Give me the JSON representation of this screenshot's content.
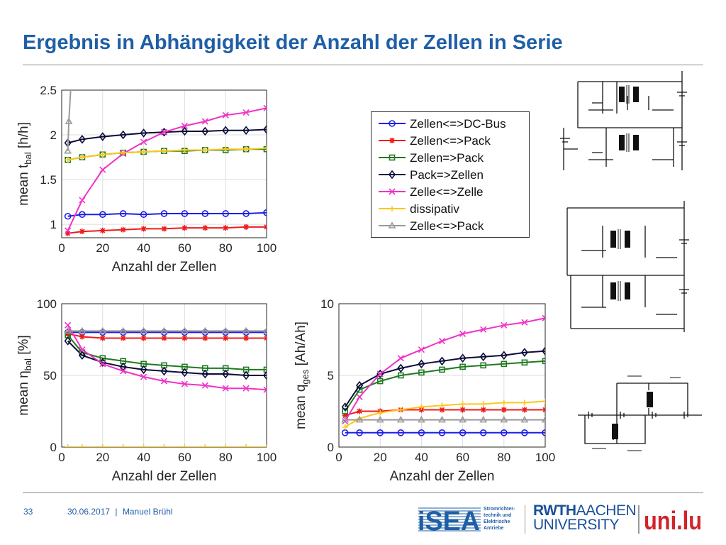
{
  "slide": {
    "title": "Ergebnis in Abhängigkeit der Anzahl der Zellen in Serie",
    "page_number": "33",
    "date": "30.06.2017",
    "separator": "|",
    "author": "Manuel Brühl"
  },
  "logos": {
    "isea": {
      "text": "iSEA",
      "subtitle_lines": [
        "Stromrichter-",
        "technik und",
        "Elektrische",
        "Antriebe"
      ]
    },
    "rwth": {
      "line1_bold": "RWTH",
      "line1_rest": "AACHEN",
      "line2": "UNIVERSITY"
    },
    "unilu": {
      "text": "uni.lu"
    }
  },
  "colors": {
    "title": "#1f5fa6",
    "zellen_dcbus": "#1f1fe8",
    "zellen_pack": "#ee1c1c",
    "zellen_to_pack": "#1f7a1f",
    "pack_to_zellen": "#0b0b3a",
    "zelle_zelle": "#f032c8",
    "dissipativ": "#ffc61a",
    "zelle_pack_gray": "#9a9a9a"
  },
  "chart_data": [
    {
      "type": "line",
      "xlabel": "Anzahl der Zellen",
      "ylabel_main": "mean t",
      "ylabel_sub": "bal",
      "ylabel_unit": "[h/h]",
      "xlim": [
        0,
        100
      ],
      "ylim": [
        0.85,
        2.5
      ],
      "xticks": [
        "0",
        "20",
        "40",
        "60",
        "80",
        "100"
      ],
      "yticks": [
        "1",
        "1.5",
        "2",
        "2.5"
      ],
      "ytick_values": [
        1,
        1.5,
        2,
        2.5
      ],
      "grid": true,
      "x": [
        3,
        10,
        20,
        30,
        40,
        50,
        60,
        70,
        80,
        90,
        100
      ],
      "series": [
        {
          "name": "Zellen<=>DC-Bus",
          "color": "#1f1fe8",
          "marker": "o",
          "values": [
            1.09,
            1.11,
            1.11,
            1.12,
            1.11,
            1.12,
            1.12,
            1.12,
            1.12,
            1.12,
            1.13
          ]
        },
        {
          "name": "Zellen<=>Pack",
          "color": "#ee1c1c",
          "marker": "*",
          "values": [
            0.9,
            0.92,
            0.93,
            0.94,
            0.95,
            0.95,
            0.96,
            0.96,
            0.96,
            0.97,
            0.97
          ]
        },
        {
          "name": "Zellen=>Pack",
          "color": "#1f7a1f",
          "marker": "s",
          "values": [
            1.72,
            1.75,
            1.78,
            1.8,
            1.81,
            1.82,
            1.82,
            1.83,
            1.83,
            1.84,
            1.84
          ]
        },
        {
          "name": "Pack=>Zellen",
          "color": "#0b0b3a",
          "marker": "d",
          "values": [
            1.91,
            1.95,
            1.98,
            2.0,
            2.02,
            2.03,
            2.04,
            2.04,
            2.05,
            2.05,
            2.06
          ]
        },
        {
          "name": "Zelle<=>Zelle",
          "color": "#f032c8",
          "marker": "x",
          "values": [
            0.93,
            1.27,
            1.61,
            1.79,
            1.92,
            2.03,
            2.1,
            2.15,
            2.22,
            2.25,
            2.3
          ]
        },
        {
          "name": "dissipativ",
          "color": "#ffc61a",
          "marker": "+",
          "values": [
            1.72,
            1.75,
            1.78,
            1.8,
            1.81,
            1.82,
            1.83,
            1.83,
            1.84,
            1.84,
            1.85
          ]
        },
        {
          "name": "Zelle<=>Pack",
          "color": "#9a9a9a",
          "marker": "^",
          "x": [
            3,
            3.5,
            4.5
          ],
          "values": [
            1.82,
            2.15,
            2.55
          ]
        }
      ],
      "legend_position": "right"
    },
    {
      "type": "line",
      "xlabel": "Anzahl der Zellen",
      "ylabel_main": "mean η",
      "ylabel_sub": "bal",
      "ylabel_unit": "[%]",
      "xlim": [
        0,
        100
      ],
      "ylim": [
        0,
        100
      ],
      "xticks": [
        "0",
        "20",
        "40",
        "60",
        "80",
        "100"
      ],
      "yticks": [
        "0",
        "50",
        "100"
      ],
      "ytick_values": [
        0,
        50,
        100
      ],
      "grid": true,
      "x": [
        3,
        10,
        20,
        30,
        40,
        50,
        60,
        70,
        80,
        90,
        100
      ],
      "series": [
        {
          "name": "Zellen<=>DC-Bus",
          "color": "#1f1fe8",
          "marker": "o",
          "values": [
            80,
            80,
            80,
            80,
            80,
            80,
            80,
            80,
            80,
            80,
            80
          ]
        },
        {
          "name": "Zellen<=>Pack",
          "color": "#ee1c1c",
          "marker": "*",
          "values": [
            79,
            77,
            76,
            76,
            76,
            76,
            76,
            76,
            76,
            76,
            76
          ]
        },
        {
          "name": "Zellen=>Pack",
          "color": "#1f7a1f",
          "marker": "s",
          "values": [
            78,
            66,
            62,
            60,
            58,
            57,
            56,
            55,
            55,
            54,
            54
          ]
        },
        {
          "name": "Pack=>Zellen",
          "color": "#0b0b3a",
          "marker": "d",
          "values": [
            74,
            64,
            59,
            56,
            54,
            53,
            52,
            51,
            51,
            50,
            50
          ]
        },
        {
          "name": "Zelle<=>Zelle",
          "color": "#f032c8",
          "marker": "x",
          "values": [
            85,
            68,
            58,
            53,
            49,
            46,
            44,
            43,
            41,
            41,
            40
          ]
        },
        {
          "name": "dissipativ",
          "color": "#ffc61a",
          "marker": "+",
          "values": [
            0,
            0,
            0,
            0,
            0,
            0,
            0,
            0,
            0,
            0,
            0
          ]
        },
        {
          "name": "Zelle<=>Pack",
          "color": "#9a9a9a",
          "marker": "^",
          "values": [
            81,
            81,
            81,
            81,
            81,
            81,
            81,
            81,
            81,
            81,
            81
          ]
        }
      ]
    },
    {
      "type": "line",
      "xlabel": "Anzahl der Zellen",
      "ylabel_main": "mean q",
      "ylabel_sub": "ges",
      "ylabel_unit": "[Ah/Ah]",
      "xlim": [
        0,
        100
      ],
      "ylim": [
        0,
        10
      ],
      "xticks": [
        "0",
        "20",
        "40",
        "60",
        "80",
        "100"
      ],
      "yticks": [
        "0",
        "5",
        "10"
      ],
      "ytick_values": [
        0,
        5,
        10
      ],
      "grid": true,
      "x": [
        3,
        10,
        20,
        30,
        40,
        50,
        60,
        70,
        80,
        90,
        100
      ],
      "series": [
        {
          "name": "Zellen<=>DC-Bus",
          "color": "#1f1fe8",
          "marker": "o",
          "values": [
            1,
            1,
            1,
            1,
            1,
            1,
            1,
            1,
            1,
            1,
            1
          ]
        },
        {
          "name": "Zellen<=>Pack",
          "color": "#ee1c1c",
          "marker": "*",
          "values": [
            2.2,
            2.5,
            2.5,
            2.6,
            2.6,
            2.6,
            2.6,
            2.6,
            2.6,
            2.6,
            2.6
          ]
        },
        {
          "name": "Zellen=>Pack",
          "color": "#1f7a1f",
          "marker": "s",
          "values": [
            2.5,
            4.0,
            4.6,
            5.0,
            5.2,
            5.4,
            5.6,
            5.7,
            5.8,
            5.9,
            6.0
          ]
        },
        {
          "name": "Pack=>Zellen",
          "color": "#0b0b3a",
          "marker": "d",
          "values": [
            2.8,
            4.3,
            5.1,
            5.5,
            5.8,
            6.0,
            6.2,
            6.3,
            6.4,
            6.6,
            6.7
          ]
        },
        {
          "name": "Zelle<=>Zelle",
          "color": "#f032c8",
          "marker": "x",
          "values": [
            1.8,
            3.5,
            5.1,
            6.2,
            6.8,
            7.4,
            7.9,
            8.2,
            8.5,
            8.7,
            9.0
          ]
        },
        {
          "name": "dissipativ",
          "color": "#ffc61a",
          "marker": "+",
          "values": [
            1.4,
            2.0,
            2.4,
            2.6,
            2.8,
            2.9,
            3.0,
            3.0,
            3.1,
            3.1,
            3.2
          ]
        },
        {
          "name": "Zelle<=>Pack",
          "color": "#9a9a9a",
          "marker": "^",
          "values": [
            1.9,
            1.9,
            1.9,
            1.9,
            1.9,
            1.9,
            1.9,
            1.9,
            1.9,
            1.9,
            1.9
          ]
        }
      ]
    }
  ]
}
